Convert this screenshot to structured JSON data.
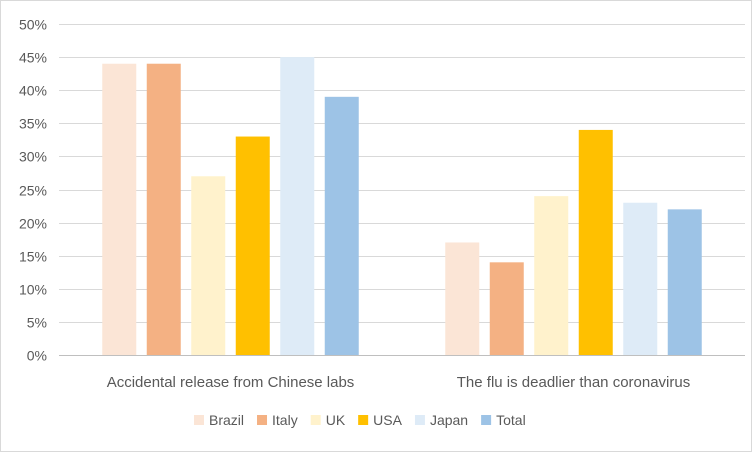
{
  "chart_data": {
    "type": "bar",
    "title": "",
    "xlabel": "",
    "ylabel": "",
    "categories": [
      "Accidental release from Chinese labs",
      "The flu is deadlier than coronavirus"
    ],
    "series": [
      {
        "name": "Brazil",
        "color": "#fbe5d6",
        "values": [
          44,
          17
        ]
      },
      {
        "name": "Italy",
        "color": "#f4b183",
        "values": [
          44,
          14
        ]
      },
      {
        "name": "UK",
        "color": "#fff2cc",
        "values": [
          27,
          24
        ]
      },
      {
        "name": "USA",
        "color": "#ffc000",
        "values": [
          33,
          34
        ]
      },
      {
        "name": "Japan",
        "color": "#deebf7",
        "values": [
          45,
          23
        ]
      },
      {
        "name": "Total",
        "color": "#9dc3e6",
        "values": [
          39,
          22
        ]
      }
    ],
    "ylim": [
      0,
      50
    ],
    "yticks": [
      0,
      5,
      10,
      15,
      20,
      25,
      30,
      35,
      40,
      45,
      50
    ],
    "ytick_labels": [
      "0%",
      "5%",
      "10%",
      "15%",
      "20%",
      "25%",
      "30%",
      "35%",
      "40%",
      "45%",
      "50%"
    ],
    "grid": true,
    "legend_position": "bottom"
  }
}
